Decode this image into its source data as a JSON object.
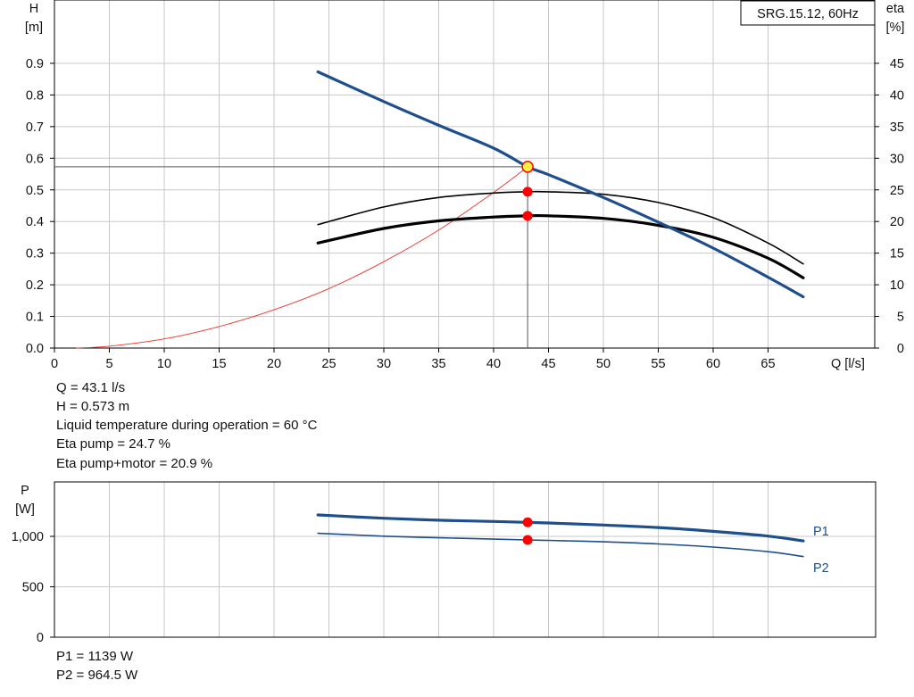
{
  "chart_data": [
    {
      "type": "line",
      "title": "SRG.15.12, 60Hz",
      "xlabel": "Q [l/s]",
      "ylabel_left": "H\n[m]",
      "ylabel_left_name": "H",
      "ylabel_left_unit": "[m]",
      "ylabel_right_name": "eta",
      "ylabel_right_unit": "[%]",
      "xlim": [
        0,
        73.5
      ],
      "ylim_left": [
        0,
        0.9
      ],
      "ylim_right": [
        0,
        45
      ],
      "x_ticks": [
        0,
        5,
        10,
        15,
        20,
        25,
        30,
        35,
        40,
        45,
        50,
        55,
        60,
        65
      ],
      "x_tick_labels": [
        "0",
        "5",
        "10",
        "15",
        "20",
        "25",
        "30",
        "35",
        "40",
        "45",
        "50",
        "55",
        "60",
        "65"
      ],
      "y_left_ticks": [
        0,
        0.1,
        0.2,
        0.3,
        0.4,
        0.5,
        0.6,
        0.7,
        0.8,
        0.9
      ],
      "y_left_tick_labels": [
        "0.0",
        "0.1",
        "0.2",
        "0.3",
        "0.4",
        "0.5",
        "0.6",
        "0.7",
        "0.8",
        "0.9"
      ],
      "y_right_ticks": [
        0,
        5,
        10,
        15,
        20,
        25,
        30,
        35,
        40,
        45
      ],
      "y_right_tick_labels": [
        "0",
        "5",
        "10",
        "15",
        "20",
        "25",
        "30",
        "35",
        "40",
        "45"
      ],
      "grid": true,
      "series": [
        {
          "id": "head",
          "axis": "left",
          "color": "#1f4e8c",
          "width": 3.2,
          "x": [
            24,
            30,
            35,
            40,
            43.1,
            45,
            50,
            55,
            60,
            65,
            68.2
          ],
          "y": [
            0.873,
            0.779,
            0.704,
            0.632,
            0.573,
            0.548,
            0.476,
            0.398,
            0.316,
            0.224,
            0.162
          ]
        },
        {
          "id": "eta-pump",
          "axis": "right",
          "color": "#000000",
          "width": 1.6,
          "x": [
            24,
            30,
            35,
            40,
            43.1,
            45,
            50,
            55,
            60,
            65,
            68.2
          ],
          "y": [
            19.5,
            22.3,
            23.8,
            24.5,
            24.7,
            24.7,
            24.3,
            23.0,
            20.6,
            16.6,
            13.3
          ]
        },
        {
          "id": "eta-pump-motor",
          "axis": "right",
          "color": "#000000",
          "width": 3.2,
          "x": [
            24,
            30,
            35,
            40,
            43.1,
            45,
            50,
            55,
            60,
            65,
            68.2
          ],
          "y": [
            16.6,
            18.9,
            20.1,
            20.7,
            20.9,
            20.9,
            20.5,
            19.4,
            17.5,
            14.2,
            11.1
          ]
        },
        {
          "id": "system-curve",
          "axis": "left",
          "color": "#e8352b",
          "width": 0.9,
          "x": [
            2,
            5,
            10,
            15,
            20,
            25,
            30,
            35,
            40,
            43.1
          ],
          "y": [
            0.0,
            0.006,
            0.029,
            0.068,
            0.121,
            0.188,
            0.273,
            0.373,
            0.492,
            0.573
          ]
        }
      ],
      "operating_point": {
        "Q": 43.1,
        "H": 0.573,
        "eta_pump": 24.7,
        "eta_pump_motor": 20.9
      }
    },
    {
      "type": "line",
      "ylabel_name": "P",
      "ylabel_unit": "[W]",
      "xlim": [
        0,
        73.5
      ],
      "ylim": [
        0,
        1500
      ],
      "y_ticks": [
        0,
        500,
        1000
      ],
      "y_tick_labels": [
        "0",
        "500",
        "1,000"
      ],
      "grid": true,
      "series": [
        {
          "name": "P1",
          "color": "#1f4e8c",
          "width": 3.2,
          "x": [
            24,
            30,
            35,
            40,
            43.1,
            45,
            50,
            55,
            60,
            65,
            68.2
          ],
          "y": [
            1212,
            1180,
            1160,
            1148,
            1139,
            1133,
            1112,
            1088,
            1050,
            1003,
            955
          ]
        },
        {
          "name": "P2",
          "color": "#1f4e8c",
          "width": 1.6,
          "x": [
            24,
            30,
            35,
            40,
            43.1,
            45,
            50,
            55,
            60,
            65,
            68.2
          ],
          "y": [
            1030,
            1002,
            986,
            973,
            964.5,
            960,
            946,
            925,
            894,
            848,
            800
          ]
        }
      ],
      "operating_point": {
        "Q": 43.1,
        "P1": 1139,
        "P2": 964.5
      }
    }
  ],
  "info_top": [
    "Q = 43.1 l/s",
    "H = 0.573 m",
    "Liquid temperature during operation = 60 °C",
    "Eta pump = 24.7 %",
    "Eta pump+motor = 20.9 %"
  ],
  "info_bottom": [
    "P1 = 1139 W",
    "P2 = 964.5 W"
  ],
  "colors": {
    "grid": "#c8c8c8",
    "curve_blue": "#1f4e8c",
    "marker_red": "#ff0000",
    "marker_yellow": "#ffee44",
    "system_curve": "#e8352b"
  }
}
